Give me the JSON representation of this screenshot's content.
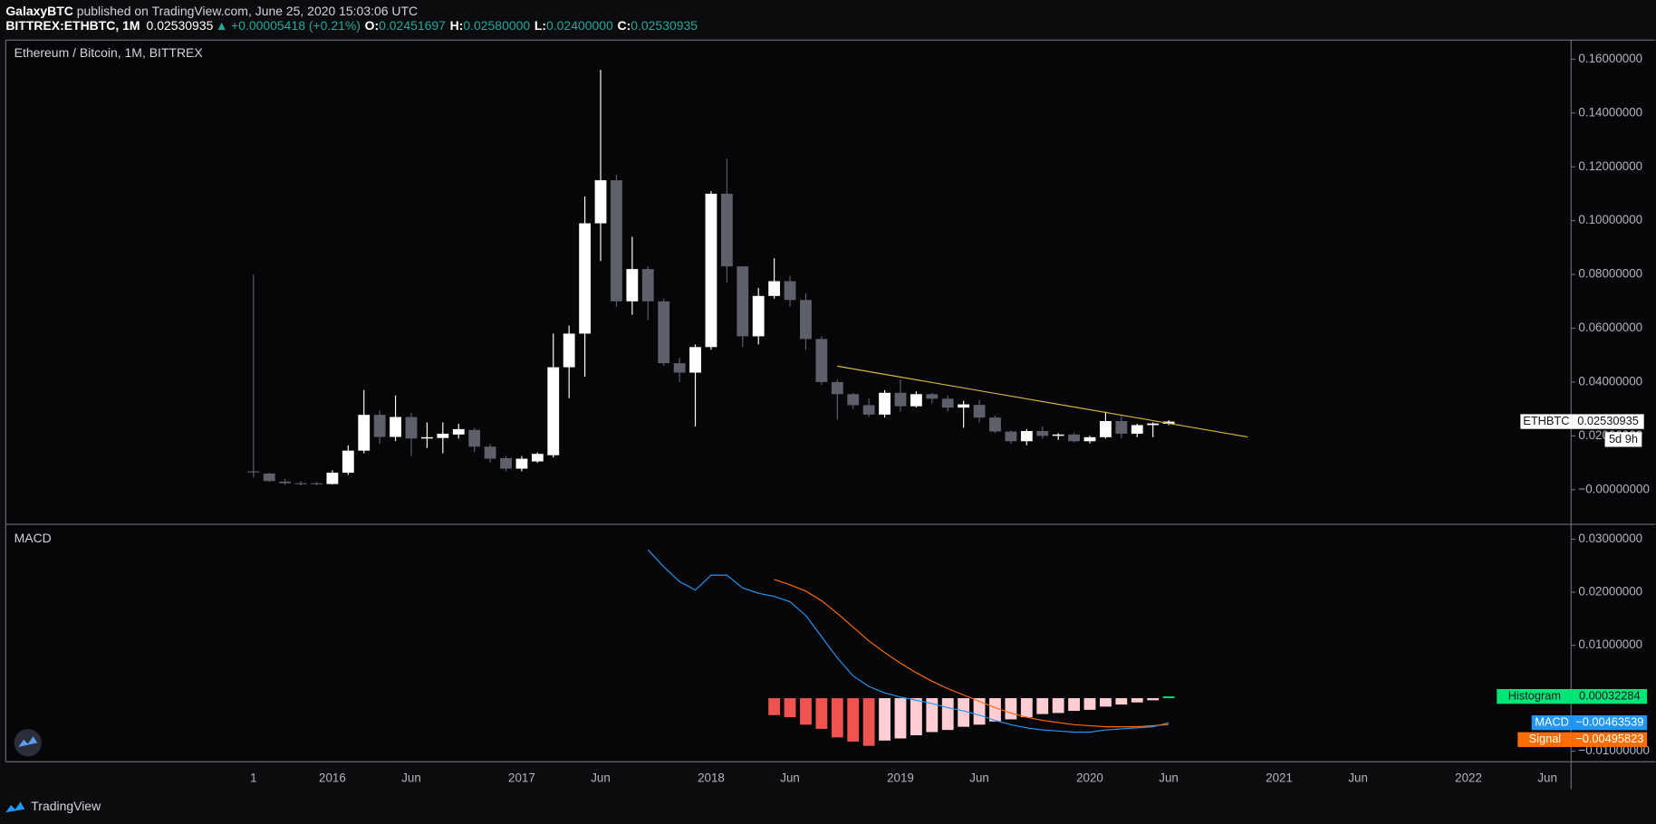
{
  "header": {
    "author": "GalaxyBTC",
    "published": " published on TradingView.com, June 25, 2020 15:03:06 UTC",
    "symbol": "BITTREX:ETHBTC, 1M",
    "last": "0.02530935",
    "arrow": "▲",
    "change": "+0.00005418 (+0.21%)",
    "ohlc": [
      {
        "label": "O:",
        "value": "0.02451697"
      },
      {
        "label": "H:",
        "value": "0.02580000"
      },
      {
        "label": "L:",
        "value": "0.02400000"
      },
      {
        "label": "C:",
        "value": "0.02530935"
      }
    ]
  },
  "chart_data": [
    {
      "type": "candlestick",
      "title": "Ethereum / Bitcoin, 1M, BITTREX",
      "symbol": "ETHBTC",
      "countdown": "5d 9h",
      "up_color": "#ffffff",
      "down_color": "#5d606b",
      "x": [
        0,
        1,
        2,
        3,
        4,
        5,
        6,
        7,
        8,
        9,
        10,
        11,
        12,
        13,
        14,
        15,
        16,
        17,
        18,
        19,
        20,
        21,
        22,
        23,
        24,
        25,
        26,
        27,
        28,
        29,
        30,
        31,
        32,
        33,
        34,
        35,
        36,
        37,
        38,
        39,
        40,
        41,
        42,
        43,
        44,
        45,
        46,
        47,
        48,
        49,
        50,
        51,
        52,
        53,
        54,
        55,
        56,
        57,
        58
      ],
      "open": [
        0.0068,
        0.006,
        0.003,
        0.0024,
        0.0024,
        0.0021,
        0.0063,
        0.0145,
        0.0278,
        0.0196,
        0.027,
        0.019,
        0.0192,
        0.0205,
        0.0222,
        0.016,
        0.0117,
        0.0078,
        0.0105,
        0.0128,
        0.0455,
        0.058,
        0.099,
        0.115,
        0.07,
        0.082,
        0.07,
        0.047,
        0.0435,
        0.053,
        0.11,
        0.083,
        0.057,
        0.072,
        0.0775,
        0.0705,
        0.056,
        0.04,
        0.0355,
        0.0314,
        0.0279,
        0.036,
        0.031,
        0.0355,
        0.0338,
        0.0305,
        0.0315,
        0.0268,
        0.0216,
        0.018,
        0.0218,
        0.02,
        0.0205,
        0.018,
        0.0195,
        0.0255,
        0.0208,
        0.024,
        0.02451697
      ],
      "high": [
        0.08,
        0.0063,
        0.004,
        0.0032,
        0.0029,
        0.0072,
        0.0165,
        0.037,
        0.0295,
        0.035,
        0.0285,
        0.025,
        0.025,
        0.0245,
        0.023,
        0.017,
        0.0125,
        0.0125,
        0.0138,
        0.058,
        0.061,
        0.109,
        0.156,
        0.117,
        0.094,
        0.083,
        0.071,
        0.049,
        0.054,
        0.111,
        0.123,
        0.083,
        0.075,
        0.086,
        0.0795,
        0.073,
        0.057,
        0.041,
        0.036,
        0.034,
        0.037,
        0.041,
        0.0365,
        0.036,
        0.035,
        0.033,
        0.0333,
        0.0275,
        0.022,
        0.0225,
        0.0235,
        0.021,
        0.021,
        0.02,
        0.029,
        0.0275,
        0.0245,
        0.025,
        0.0258
      ],
      "low": [
        0.0045,
        0.0028,
        0.0018,
        0.0016,
        0.0017,
        0.0019,
        0.0055,
        0.0135,
        0.017,
        0.018,
        0.0125,
        0.0155,
        0.0135,
        0.019,
        0.014,
        0.01,
        0.0068,
        0.0068,
        0.01,
        0.012,
        0.034,
        0.042,
        0.085,
        0.068,
        0.065,
        0.063,
        0.046,
        0.04,
        0.0235,
        0.052,
        0.077,
        0.053,
        0.054,
        0.071,
        0.068,
        0.052,
        0.039,
        0.026,
        0.03,
        0.027,
        0.0268,
        0.029,
        0.0305,
        0.032,
        0.029,
        0.023,
        0.025,
        0.021,
        0.017,
        0.0165,
        0.019,
        0.0185,
        0.0175,
        0.0172,
        0.019,
        0.019,
        0.0195,
        0.0195,
        0.024
      ],
      "close": [
        0.0064,
        0.0032,
        0.0024,
        0.0022,
        0.0021,
        0.0063,
        0.0145,
        0.0278,
        0.0196,
        0.027,
        0.019,
        0.0195,
        0.0208,
        0.0225,
        0.016,
        0.0115,
        0.0078,
        0.0115,
        0.0133,
        0.0455,
        0.058,
        0.099,
        0.115,
        0.07,
        0.082,
        0.07,
        0.047,
        0.0435,
        0.053,
        0.11,
        0.083,
        0.057,
        0.072,
        0.0775,
        0.0705,
        0.056,
        0.04,
        0.0355,
        0.0314,
        0.0279,
        0.036,
        0.031,
        0.0355,
        0.0338,
        0.0305,
        0.0317,
        0.0268,
        0.0216,
        0.018,
        0.0218,
        0.02,
        0.0205,
        0.018,
        0.0195,
        0.0255,
        0.0208,
        0.024,
        0.0246,
        0.02530935
      ],
      "trendline": {
        "x": [
          37,
          63
        ],
        "values": [
          0.0459,
          0.0196
        ],
        "color": "#d9b63c"
      },
      "xlim": [
        -15.7,
        83.5
      ],
      "ylim": [
        -0.0129,
        0.1671
      ],
      "yticks": [
        {
          "value": 0.16,
          "label": "0.16000000"
        },
        {
          "value": 0.14,
          "label": "0.14000000"
        },
        {
          "value": 0.12,
          "label": "0.12000000"
        },
        {
          "value": 0.1,
          "label": "0.10000000"
        },
        {
          "value": 0.08,
          "label": "0.08000000"
        },
        {
          "value": 0.06,
          "label": "0.06000000"
        },
        {
          "value": 0.04,
          "label": "0.04000000"
        },
        {
          "value": 0.02,
          "label": "0.02000000"
        },
        {
          "value": 0,
          "label": "−0.00000000"
        }
      ],
      "xticks": [
        {
          "value": 0,
          "label": "1"
        },
        {
          "value": 5,
          "label": "2016"
        },
        {
          "value": 10,
          "label": "Jun"
        },
        {
          "value": 17,
          "label": "2017"
        },
        {
          "value": 22,
          "label": "Jun"
        },
        {
          "value": 29,
          "label": "2018"
        },
        {
          "value": 34,
          "label": "Jun"
        },
        {
          "value": 41,
          "label": "2019"
        },
        {
          "value": 46,
          "label": "Jun"
        },
        {
          "value": 53,
          "label": "2020"
        },
        {
          "value": 58,
          "label": "Jun"
        },
        {
          "value": 65,
          "label": "2021"
        },
        {
          "value": 70,
          "label": "Jun"
        },
        {
          "value": 77,
          "label": "2022"
        },
        {
          "value": 82,
          "label": "Jun"
        }
      ]
    },
    {
      "type": "macd",
      "title": "MACD",
      "xlim": [
        -15.7,
        83.5
      ],
      "ylim": [
        -0.012,
        0.0328
      ],
      "yticks": [
        {
          "value": 0.03,
          "label": "0.03000000"
        },
        {
          "value": 0.02,
          "label": "0.02000000"
        },
        {
          "value": 0.01,
          "label": "0.01000000"
        },
        {
          "value": -0.01,
          "label": "−0.01000000"
        }
      ],
      "series": [
        {
          "name": "Histogram",
          "type": "histogram",
          "color": "#00e676",
          "color_down": "#ef5350",
          "color_up_negative": "#ffcdd2",
          "x": [
            33,
            34,
            35,
            36,
            37,
            38,
            39,
            40,
            41,
            42,
            43,
            44,
            45,
            46,
            47,
            48,
            49,
            50,
            51,
            52,
            53,
            54,
            55,
            56,
            57,
            58
          ],
          "values": [
            -0.0032,
            -0.0036,
            -0.005,
            -0.0058,
            -0.0074,
            -0.0082,
            -0.009,
            -0.008,
            -0.0076,
            -0.007,
            -0.0064,
            -0.006,
            -0.0054,
            -0.005,
            -0.0044,
            -0.004,
            -0.0036,
            -0.003,
            -0.0028,
            -0.0024,
            -0.0022,
            -0.0016,
            -0.0012,
            -0.0008,
            -0.0004,
            0.00032284
          ]
        },
        {
          "name": "MACD",
          "type": "line",
          "color": "#2196f3",
          "x": [
            25,
            26,
            27,
            28,
            29,
            30,
            31,
            32,
            33,
            34,
            35,
            36,
            37,
            38,
            39,
            40,
            41,
            42,
            43,
            44,
            45,
            46,
            47,
            48,
            49,
            50,
            51,
            52,
            53,
            54,
            55,
            56,
            57,
            58
          ],
          "values": [
            0.028,
            0.0248,
            0.022,
            0.0204,
            0.0232,
            0.0232,
            0.0208,
            0.0198,
            0.0192,
            0.0182,
            0.0156,
            0.0116,
            0.0076,
            0.0042,
            0.0022,
            0.001,
            0.0002,
            -0.0004,
            -0.001,
            -0.0018,
            -0.0024,
            -0.0032,
            -0.0042,
            -0.005,
            -0.0056,
            -0.006,
            -0.0062,
            -0.0064,
            -0.0064,
            -0.006,
            -0.0058,
            -0.0056,
            -0.0054,
            -0.00463539
          ],
          "last_value_label": "−0.00463539"
        },
        {
          "name": "Signal",
          "type": "line",
          "color": "#ff6d00",
          "x": [
            33,
            34,
            35,
            36,
            37,
            38,
            39,
            40,
            41,
            42,
            43,
            44,
            45,
            46,
            47,
            48,
            49,
            50,
            51,
            52,
            53,
            54,
            55,
            56,
            57,
            58
          ],
          "values": [
            0.0224,
            0.0214,
            0.0202,
            0.0184,
            0.016,
            0.0134,
            0.0108,
            0.0086,
            0.0066,
            0.0048,
            0.0032,
            0.0018,
            0.0006,
            -0.0006,
            -0.0018,
            -0.0028,
            -0.0036,
            -0.0042,
            -0.0046,
            -0.005,
            -0.0052,
            -0.0054,
            -0.0054,
            -0.0054,
            -0.0052,
            -0.00495823
          ],
          "last_value_label": "−0.00495823"
        }
      ]
    }
  ],
  "footer": {
    "brand": "TradingView"
  }
}
